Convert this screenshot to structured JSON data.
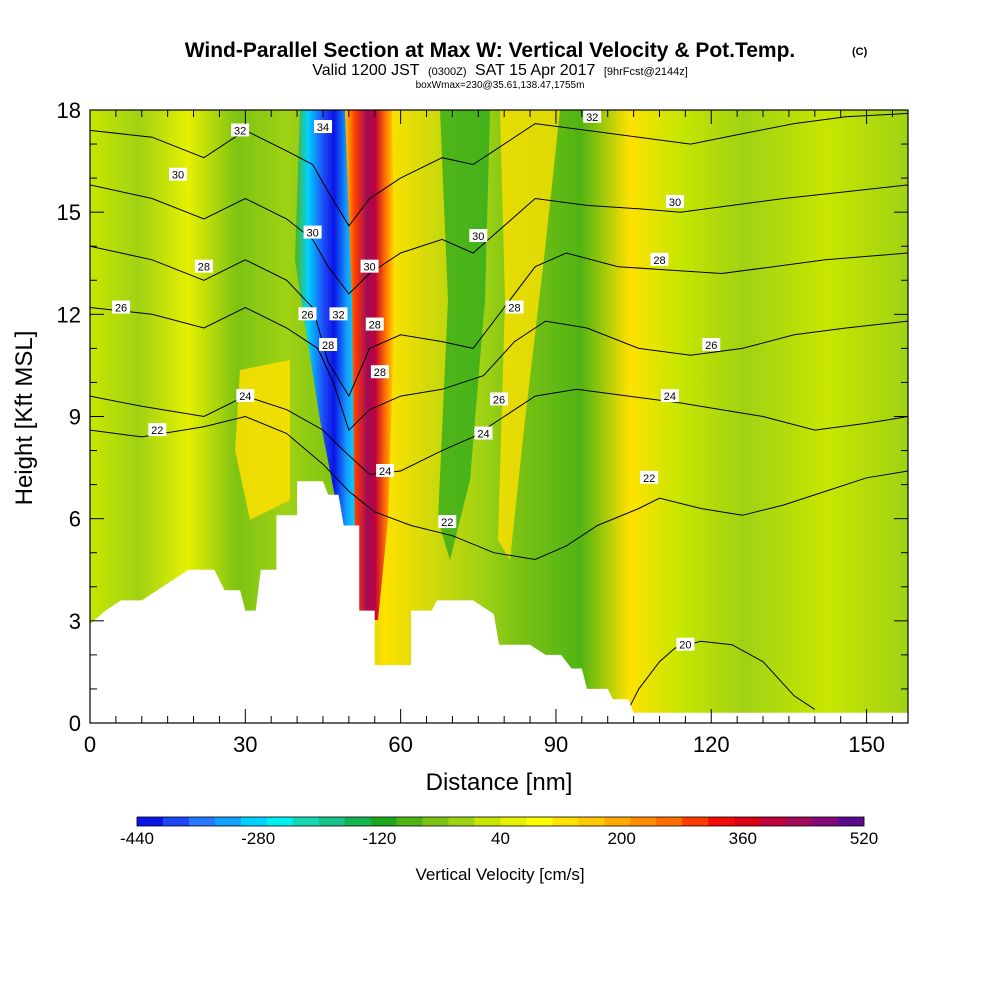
{
  "chart_data": {
    "type": "heatmap",
    "title": "Wind-Parallel Section at Max W: Vertical Velocity & Pot.Temp.",
    "title_mark": "(C)",
    "subtitle": {
      "valid": "Valid 1200 JST",
      "zulu": "(0300Z)",
      "date": "SAT 15 Apr 2017",
      "fcst": "[9hrFcst@2144z]",
      "box": "boxWmax=230@35.61,138.47,1755m"
    },
    "xlabel": "Distance [nm]",
    "ylabel": "Height [Kft MSL]",
    "xlim": [
      0,
      158
    ],
    "ylim": [
      0,
      18
    ],
    "xticks": [
      0,
      30,
      60,
      90,
      120,
      150
    ],
    "yticks": [
      0,
      3,
      6,
      9,
      12,
      15,
      18
    ],
    "grid": false,
    "colorbar": {
      "label": "Vertical Velocity [cm/s]",
      "min": -440,
      "max": 520,
      "step": 40,
      "tick_values": [
        -440,
        -280,
        -120,
        40,
        200,
        360,
        520
      ],
      "tick_labels": [
        "-440",
        "-280",
        "-120",
        "40",
        "200",
        "360",
        "520"
      ],
      "colors": [
        "#0a14e6",
        "#1e46f5",
        "#2878ff",
        "#14a0ff",
        "#00d2ff",
        "#00f0f0",
        "#14d7b4",
        "#19c38c",
        "#14b450",
        "#1ea51e",
        "#50b414",
        "#7dc314",
        "#a0d214",
        "#c8e600",
        "#e6f000",
        "#ffff00",
        "#ffe100",
        "#ffc800",
        "#ffaa00",
        "#ff8c00",
        "#ff6e00",
        "#ff3c00",
        "#f50a0a",
        "#dc0014",
        "#be003c",
        "#a00a5a",
        "#820a78",
        "#5a0a8c"
      ]
    },
    "terrain_profile": [
      [
        0,
        2.9
      ],
      [
        3,
        3.3
      ],
      [
        6,
        3.6
      ],
      [
        10,
        3.6
      ],
      [
        13,
        3.9
      ],
      [
        16,
        4.2
      ],
      [
        19,
        4.5
      ],
      [
        24,
        4.5
      ],
      [
        26,
        3.9
      ],
      [
        29,
        3.9
      ],
      [
        30,
        3.3
      ],
      [
        32,
        3.3
      ],
      [
        33,
        4.5
      ],
      [
        36,
        4.5
      ],
      [
        36,
        6.1
      ],
      [
        40,
        6.1
      ],
      [
        40,
        7.1
      ],
      [
        45,
        7.1
      ],
      [
        46,
        6.7
      ],
      [
        48,
        6.7
      ],
      [
        49,
        5.8
      ],
      [
        52,
        5.8
      ],
      [
        52,
        3.3
      ],
      [
        55,
        3.3
      ],
      [
        55,
        1.7
      ],
      [
        62,
        1.7
      ],
      [
        62,
        3.3
      ],
      [
        66,
        3.3
      ],
      [
        67,
        3.6
      ],
      [
        74,
        3.6
      ],
      [
        78,
        3.2
      ],
      [
        79,
        2.3
      ],
      [
        85,
        2.3
      ],
      [
        88,
        2.0
      ],
      [
        91,
        2.0
      ],
      [
        93,
        1.6
      ],
      [
        95,
        1.6
      ],
      [
        96,
        1.0
      ],
      [
        100,
        1.0
      ],
      [
        101,
        0.7
      ],
      [
        104,
        0.7
      ],
      [
        105,
        0.3
      ],
      [
        158,
        0.3
      ]
    ],
    "theta_contours": [
      {
        "label": "20",
        "points": [
          [
            104,
            0.4
          ],
          [
            106,
            1.0
          ],
          [
            110,
            1.8
          ],
          [
            113,
            2.2
          ],
          [
            118,
            2.4
          ],
          [
            124,
            2.3
          ],
          [
            130,
            1.8
          ],
          [
            136,
            0.8
          ],
          [
            140,
            0.4
          ]
        ]
      },
      {
        "label": "22",
        "points": [
          [
            0,
            8.6
          ],
          [
            10,
            8.4
          ],
          [
            22,
            8.7
          ],
          [
            30,
            9.0
          ],
          [
            38,
            8.5
          ],
          [
            45,
            7.6
          ],
          [
            50,
            6.8
          ],
          [
            55,
            6.2
          ],
          [
            62,
            5.8
          ],
          [
            70,
            5.5
          ],
          [
            78,
            5.0
          ],
          [
            86,
            4.8
          ],
          [
            92,
            5.2
          ],
          [
            98,
            5.8
          ],
          [
            106,
            6.3
          ],
          [
            110,
            6.6
          ],
          [
            118,
            6.3
          ],
          [
            126,
            6.1
          ],
          [
            134,
            6.4
          ],
          [
            142,
            6.8
          ],
          [
            150,
            7.2
          ],
          [
            158,
            7.4
          ]
        ]
      },
      {
        "label": "24",
        "points": [
          [
            0,
            9.6
          ],
          [
            10,
            9.3
          ],
          [
            22,
            9.0
          ],
          [
            30,
            9.6
          ],
          [
            38,
            9.2
          ],
          [
            45,
            8.6
          ],
          [
            49,
            8.0
          ],
          [
            54,
            7.3
          ],
          [
            60,
            7.4
          ],
          [
            68,
            8.0
          ],
          [
            74,
            8.4
          ],
          [
            80,
            9.0
          ],
          [
            86,
            9.6
          ],
          [
            94,
            9.8
          ],
          [
            104,
            9.6
          ],
          [
            114,
            9.4
          ],
          [
            122,
            9.2
          ],
          [
            130,
            9.0
          ],
          [
            140,
            8.6
          ],
          [
            150,
            8.8
          ],
          [
            158,
            9.0
          ]
        ]
      },
      {
        "label": "26",
        "points": [
          [
            0,
            12.2
          ],
          [
            12,
            12.0
          ],
          [
            22,
            11.6
          ],
          [
            30,
            12.2
          ],
          [
            38,
            11.6
          ],
          [
            44,
            11.0
          ],
          [
            47,
            10.0
          ],
          [
            50,
            8.6
          ],
          [
            54,
            9.2
          ],
          [
            60,
            9.6
          ],
          [
            68,
            9.8
          ],
          [
            76,
            10.2
          ],
          [
            82,
            11.2
          ],
          [
            88,
            11.8
          ],
          [
            96,
            11.6
          ],
          [
            106,
            11.0
          ],
          [
            116,
            10.8
          ],
          [
            126,
            11.0
          ],
          [
            136,
            11.4
          ],
          [
            146,
            11.6
          ],
          [
            158,
            11.8
          ]
        ]
      },
      {
        "label": "28",
        "points": [
          [
            0,
            14.0
          ],
          [
            12,
            13.6
          ],
          [
            22,
            13.0
          ],
          [
            30,
            13.6
          ],
          [
            38,
            13.0
          ],
          [
            43,
            12.2
          ],
          [
            46,
            10.6
          ],
          [
            50,
            9.6
          ],
          [
            54,
            11.0
          ],
          [
            60,
            11.4
          ],
          [
            68,
            11.2
          ],
          [
            74,
            11.0
          ],
          [
            80,
            12.2
          ],
          [
            86,
            13.4
          ],
          [
            92,
            13.8
          ],
          [
            102,
            13.4
          ],
          [
            112,
            13.3
          ],
          [
            122,
            13.2
          ],
          [
            132,
            13.4
          ],
          [
            142,
            13.6
          ],
          [
            158,
            13.8
          ]
        ]
      },
      {
        "label": "30",
        "points": [
          [
            0,
            15.8
          ],
          [
            12,
            15.4
          ],
          [
            22,
            14.8
          ],
          [
            30,
            15.4
          ],
          [
            38,
            14.8
          ],
          [
            43,
            14.2
          ],
          [
            46,
            13.4
          ],
          [
            50,
            12.6
          ],
          [
            54,
            13.2
          ],
          [
            60,
            13.8
          ],
          [
            68,
            14.2
          ],
          [
            74,
            13.8
          ],
          [
            80,
            14.6
          ],
          [
            86,
            15.4
          ],
          [
            96,
            15.2
          ],
          [
            106,
            15.1
          ],
          [
            114,
            15.0
          ],
          [
            124,
            15.2
          ],
          [
            134,
            15.4
          ],
          [
            146,
            15.6
          ],
          [
            158,
            15.8
          ]
        ]
      },
      {
        "label": "32",
        "points": [
          [
            0,
            17.4
          ],
          [
            12,
            17.2
          ],
          [
            22,
            16.6
          ],
          [
            30,
            17.4
          ],
          [
            38,
            16.8
          ],
          [
            43,
            16.4
          ],
          [
            46,
            15.6
          ],
          [
            50,
            14.6
          ],
          [
            54,
            15.4
          ],
          [
            60,
            16.0
          ],
          [
            68,
            16.6
          ],
          [
            74,
            16.4
          ],
          [
            80,
            17.0
          ],
          [
            86,
            17.6
          ],
          [
            96,
            17.4
          ],
          [
            106,
            17.2
          ],
          [
            116,
            17.0
          ],
          [
            126,
            17.3
          ],
          [
            136,
            17.6
          ],
          [
            146,
            17.8
          ],
          [
            158,
            17.9
          ]
        ]
      }
    ],
    "contour_labels": [
      {
        "text": "32",
        "x": 29,
        "y": 17.4
      },
      {
        "text": "34",
        "x": 45,
        "y": 17.5
      },
      {
        "text": "32",
        "x": 97,
        "y": 17.8
      },
      {
        "text": "30",
        "x": 17,
        "y": 16.1
      },
      {
        "text": "30",
        "x": 113,
        "y": 15.3
      },
      {
        "text": "30",
        "x": 43,
        "y": 14.4
      },
      {
        "text": "30",
        "x": 75,
        "y": 14.3
      },
      {
        "text": "30",
        "x": 54,
        "y": 13.4
      },
      {
        "text": "28",
        "x": 22,
        "y": 13.4
      },
      {
        "text": "28",
        "x": 110,
        "y": 13.6
      },
      {
        "text": "28",
        "x": 82,
        "y": 12.2
      },
      {
        "text": "26",
        "x": 6,
        "y": 12.2
      },
      {
        "text": "26",
        "x": 42,
        "y": 12.0
      },
      {
        "text": "32",
        "x": 48,
        "y": 12.0
      },
      {
        "text": "28",
        "x": 55,
        "y": 11.7
      },
      {
        "text": "28",
        "x": 46,
        "y": 11.1
      },
      {
        "text": "26",
        "x": 120,
        "y": 11.1
      },
      {
        "text": "28",
        "x": 56,
        "y": 10.3
      },
      {
        "text": "24",
        "x": 30,
        "y": 9.6
      },
      {
        "text": "24",
        "x": 112,
        "y": 9.6
      },
      {
        "text": "26",
        "x": 79,
        "y": 9.5
      },
      {
        "text": "22",
        "x": 13,
        "y": 8.6
      },
      {
        "text": "24",
        "x": 76,
        "y": 8.5
      },
      {
        "text": "24",
        "x": 57,
        "y": 7.4
      },
      {
        "text": "22",
        "x": 108,
        "y": 7.2
      },
      {
        "text": "22",
        "x": 69,
        "y": 5.9
      },
      {
        "text": "20",
        "x": 115,
        "y": 2.3
      }
    ]
  }
}
